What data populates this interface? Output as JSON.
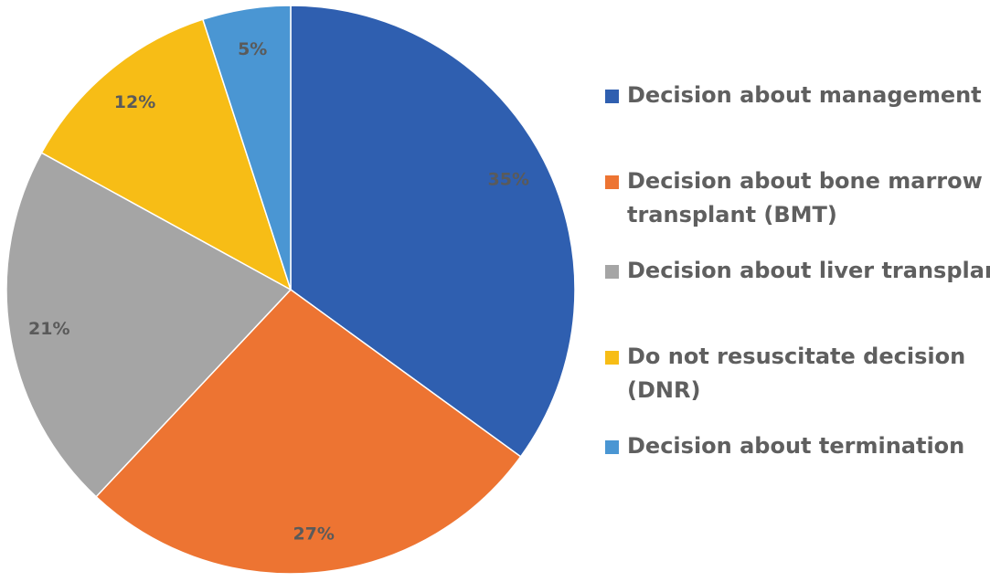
{
  "chart_data": {
    "type": "pie",
    "title": "",
    "categories": [
      "Decision about management",
      "Decision about bone marrow transplant (BMT)",
      "Decision about liver transplant",
      "Do not resuscitate decision (DNR)",
      "Decision about termination"
    ],
    "values": [
      35,
      27,
      21,
      12,
      5
    ],
    "labels": [
      "35%",
      "27%",
      "21%",
      "12%",
      "5%"
    ],
    "colors": [
      "#2f5fb0",
      "#ed7432",
      "#a5a5a5",
      "#f7bd16",
      "#4a96d3"
    ],
    "legend_lines": [
      [
        "Decision about management"
      ],
      [
        "Decision about bone marrow",
        "transplant (BMT)"
      ],
      [
        "Decision about liver transplant"
      ],
      [
        "Do not resuscitate decision",
        "(DNR)"
      ],
      [
        "Decision about termination"
      ]
    ],
    "legend_position": "right",
    "start_angle": "12 o'clock",
    "direction": "clockwise"
  }
}
